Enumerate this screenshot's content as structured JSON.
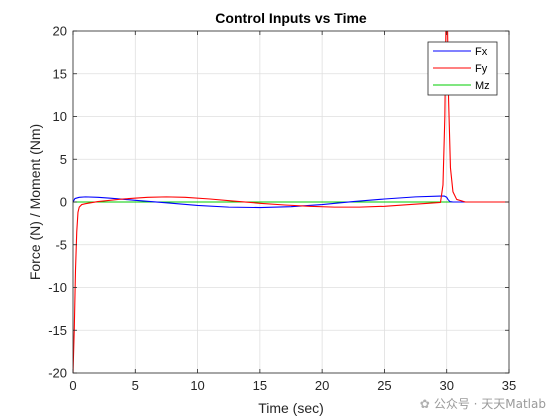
{
  "chart_data": {
    "type": "line",
    "title": "Control Inputs vs Time",
    "xlabel": "Time (sec)",
    "ylabel": "Force (N) / Moment (Nm)",
    "xlim": [
      0,
      35
    ],
    "ylim": [
      -20,
      20
    ],
    "xticks": [
      0,
      5,
      10,
      15,
      20,
      25,
      30,
      35
    ],
    "yticks": [
      -20,
      -15,
      -10,
      -5,
      0,
      5,
      10,
      15,
      20
    ],
    "grid": true,
    "legend_position": "top-right",
    "series": [
      {
        "name": "Fx",
        "color": "#0000ff",
        "x": [
          0,
          0.15,
          0.5,
          1,
          2,
          3,
          5,
          7.5,
          10,
          12.5,
          15,
          17.5,
          20,
          22.5,
          25,
          27.5,
          29.5,
          29.8,
          30,
          30.1,
          30.25,
          30.5,
          32,
          35
        ],
        "y": [
          0,
          0.4,
          0.55,
          0.6,
          0.55,
          0.45,
          0.2,
          -0.1,
          -0.4,
          -0.6,
          -0.65,
          -0.55,
          -0.3,
          0.05,
          0.35,
          0.6,
          0.7,
          0.7,
          0.55,
          0.3,
          0.05,
          0,
          0,
          0
        ]
      },
      {
        "name": "Fy",
        "color": "#ff0000",
        "x": [
          0,
          0.1,
          0.2,
          0.3,
          0.4,
          0.5,
          0.7,
          1,
          2,
          4,
          6,
          7.5,
          9,
          11,
          13,
          15,
          17,
          19,
          21,
          23,
          25,
          27,
          28.5,
          29.5,
          29.7,
          29.85,
          29.95,
          30.05,
          30.15,
          30.3,
          30.5,
          30.8,
          31.5,
          35
        ],
        "y": [
          -20,
          -15,
          -8,
          -3.5,
          -1.2,
          -0.6,
          -0.3,
          -0.2,
          0.05,
          0.35,
          0.55,
          0.6,
          0.55,
          0.35,
          0.1,
          -0.15,
          -0.35,
          -0.5,
          -0.6,
          -0.6,
          -0.5,
          -0.3,
          -0.15,
          -0.05,
          2,
          10,
          22,
          22,
          12,
          4,
          1.2,
          0.3,
          0,
          0
        ]
      },
      {
        "name": "Mz",
        "color": "#00cc00",
        "x": [
          0,
          35
        ],
        "y": [
          0,
          0
        ]
      }
    ]
  },
  "watermark": {
    "icon": "wechat-icon",
    "text": "公众号 · 天天Matlab"
  }
}
